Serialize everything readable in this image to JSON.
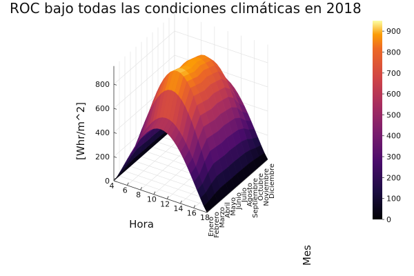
{
  "chart_data": {
    "type": "surface",
    "title": "ROC bajo todas las condiciones climáticas en 2018",
    "xlabel": "Hora",
    "ylabel": "Mes",
    "zlabel": "[Whr/m^2]",
    "x": [
      4,
      5,
      6,
      7,
      8,
      9,
      10,
      11,
      12,
      13,
      14,
      15,
      16,
      17,
      18
    ],
    "x_ticks": [
      4,
      6,
      8,
      10,
      12,
      14,
      16,
      18
    ],
    "y": [
      "Enero",
      "Febrero",
      "Marzo",
      "Abril",
      "Mayo",
      "Junio",
      "Julio",
      "Agosto",
      "Septiembre",
      "Octubre",
      "Noviembre",
      "Diciembre"
    ],
    "z_ticks": [
      0,
      200,
      400,
      600,
      800
    ],
    "zlim": [
      0,
      950
    ],
    "month_peak": [
      560,
      610,
      800,
      920,
      900,
      880,
      890,
      870,
      850,
      780,
      650,
      560
    ],
    "colorbar": {
      "ticks": [
        0,
        100,
        200,
        300,
        400,
        500,
        600,
        700,
        800,
        900
      ],
      "range": [
        0,
        950
      ],
      "colormap": "inferno"
    },
    "grid": true
  }
}
